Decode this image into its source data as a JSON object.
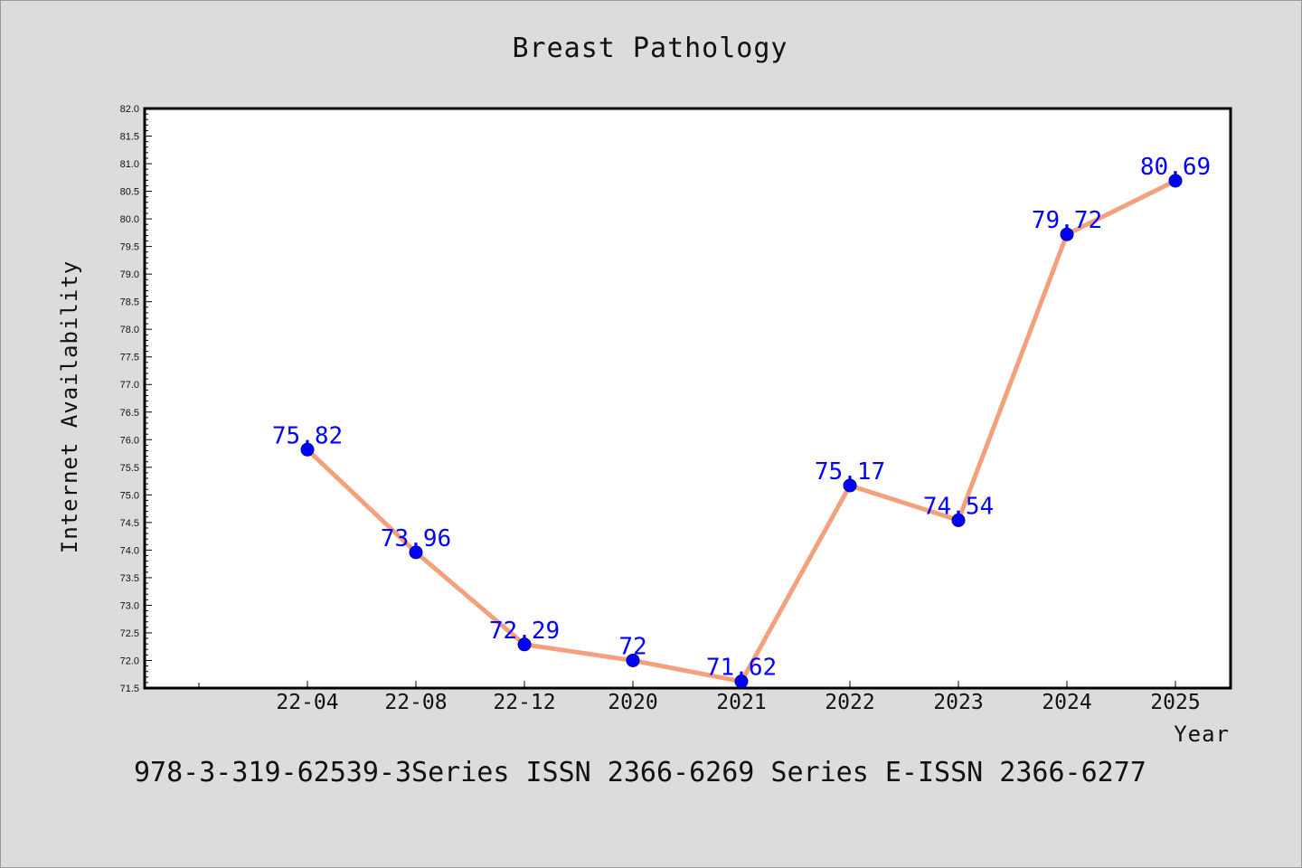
{
  "chart_data": {
    "type": "line",
    "title": "Breast Pathology",
    "xlabel": "Year",
    "ylabel": "Internet Availability",
    "categories": [
      "22-04",
      "22-08",
      "22-12",
      "2020",
      "2021",
      "2022",
      "2023",
      "2024",
      "2025"
    ],
    "series": [
      {
        "values": [
          75.82,
          73.96,
          72.29,
          72,
          71.62,
          75.17,
          74.54,
          79.72,
          80.69
        ],
        "data_labels": [
          "75.82",
          "73.96",
          "72.29",
          "72",
          "71.62",
          "75.17",
          "74.54",
          "79.72",
          "80.69"
        ]
      }
    ],
    "ylim": [
      71.5,
      82.0
    ],
    "yticks": [
      "71.5",
      "72.0",
      "72.5",
      "73.0",
      "73.5",
      "74.0",
      "74.5",
      "75.0",
      "75.5",
      "76.0",
      "76.5",
      "77.0",
      "77.5",
      "78.0",
      "78.5",
      "79.0",
      "79.5",
      "80.0",
      "80.5",
      "81.0",
      "81.5",
      "82.0"
    ],
    "grid": false,
    "legend": "none",
    "colors": {
      "line": "#f4a07c",
      "marker": "#0000ff",
      "data_label": "#0000ff",
      "background": "#dcdcdc",
      "plot_area": "#ffffff"
    }
  },
  "footnote": "978-3-319-62539-3Series ISSN 2366-6269 Series E-ISSN 2366-6277"
}
